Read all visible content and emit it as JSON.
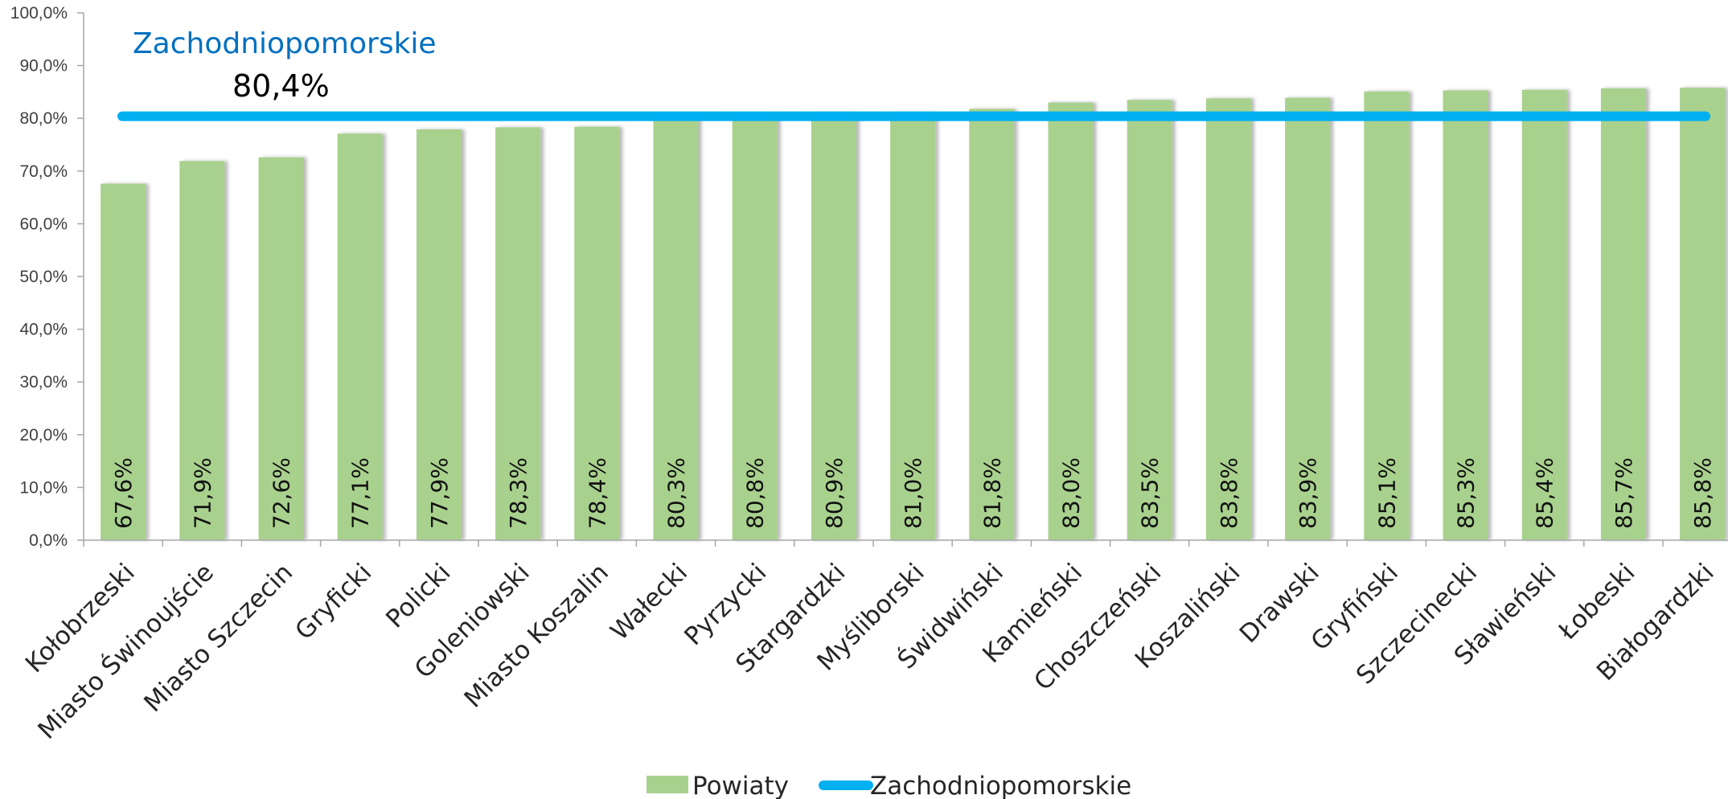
{
  "chart_data": {
    "type": "bar",
    "categories": [
      "Kołobrzeski",
      "Miasto Świnoujście",
      "Miasto Szczecin",
      "Gryficki",
      "Policki",
      "Goleniowski",
      "Miasto Koszalin",
      "Wałecki",
      "Pyrzycki",
      "Stargardzki",
      "Myśliborski",
      "Świdwiński",
      "Kamieński",
      "Choszczeński",
      "Koszaliński",
      "Drawski",
      "Gryfiński",
      "Szczecinecki",
      "Sławieński",
      "Łobeski",
      "Białogardzki"
    ],
    "series": [
      {
        "name": "Powiaty",
        "type": "bar",
        "color": "#a9d18e",
        "values": [
          67.6,
          71.9,
          72.6,
          77.1,
          77.9,
          78.3,
          78.4,
          80.3,
          80.8,
          80.9,
          81.0,
          81.8,
          83.0,
          83.5,
          83.8,
          83.9,
          85.1,
          85.3,
          85.4,
          85.7,
          85.8
        ],
        "labels": [
          "67,6%",
          "71,9%",
          "72,6%",
          "77,1%",
          "77,9%",
          "78,3%",
          "78,4%",
          "80,3%",
          "80,8%",
          "80,9%",
          "81,0%",
          "81,8%",
          "83,0%",
          "83,5%",
          "83,8%",
          "83,9%",
          "85,1%",
          "85,3%",
          "85,4%",
          "85,7%",
          "85,8%"
        ]
      },
      {
        "name": "Zachodniopomorskie",
        "type": "line",
        "color": "#00b0f0",
        "value": 80.4
      }
    ],
    "reference_annotation": {
      "name": "Zachodniopomorskie",
      "value_label": "80,4%",
      "color": "#0070c0"
    },
    "y_ticks": [
      "0,0%",
      "10,0%",
      "20,0%",
      "30,0%",
      "40,0%",
      "50,0%",
      "60,0%",
      "70,0%",
      "80,0%",
      "90,0%",
      "100,0%"
    ],
    "ylim": [
      0,
      100
    ],
    "title": "",
    "xlabel": "",
    "ylabel": "",
    "grid": false,
    "legend": "bottom-center"
  }
}
